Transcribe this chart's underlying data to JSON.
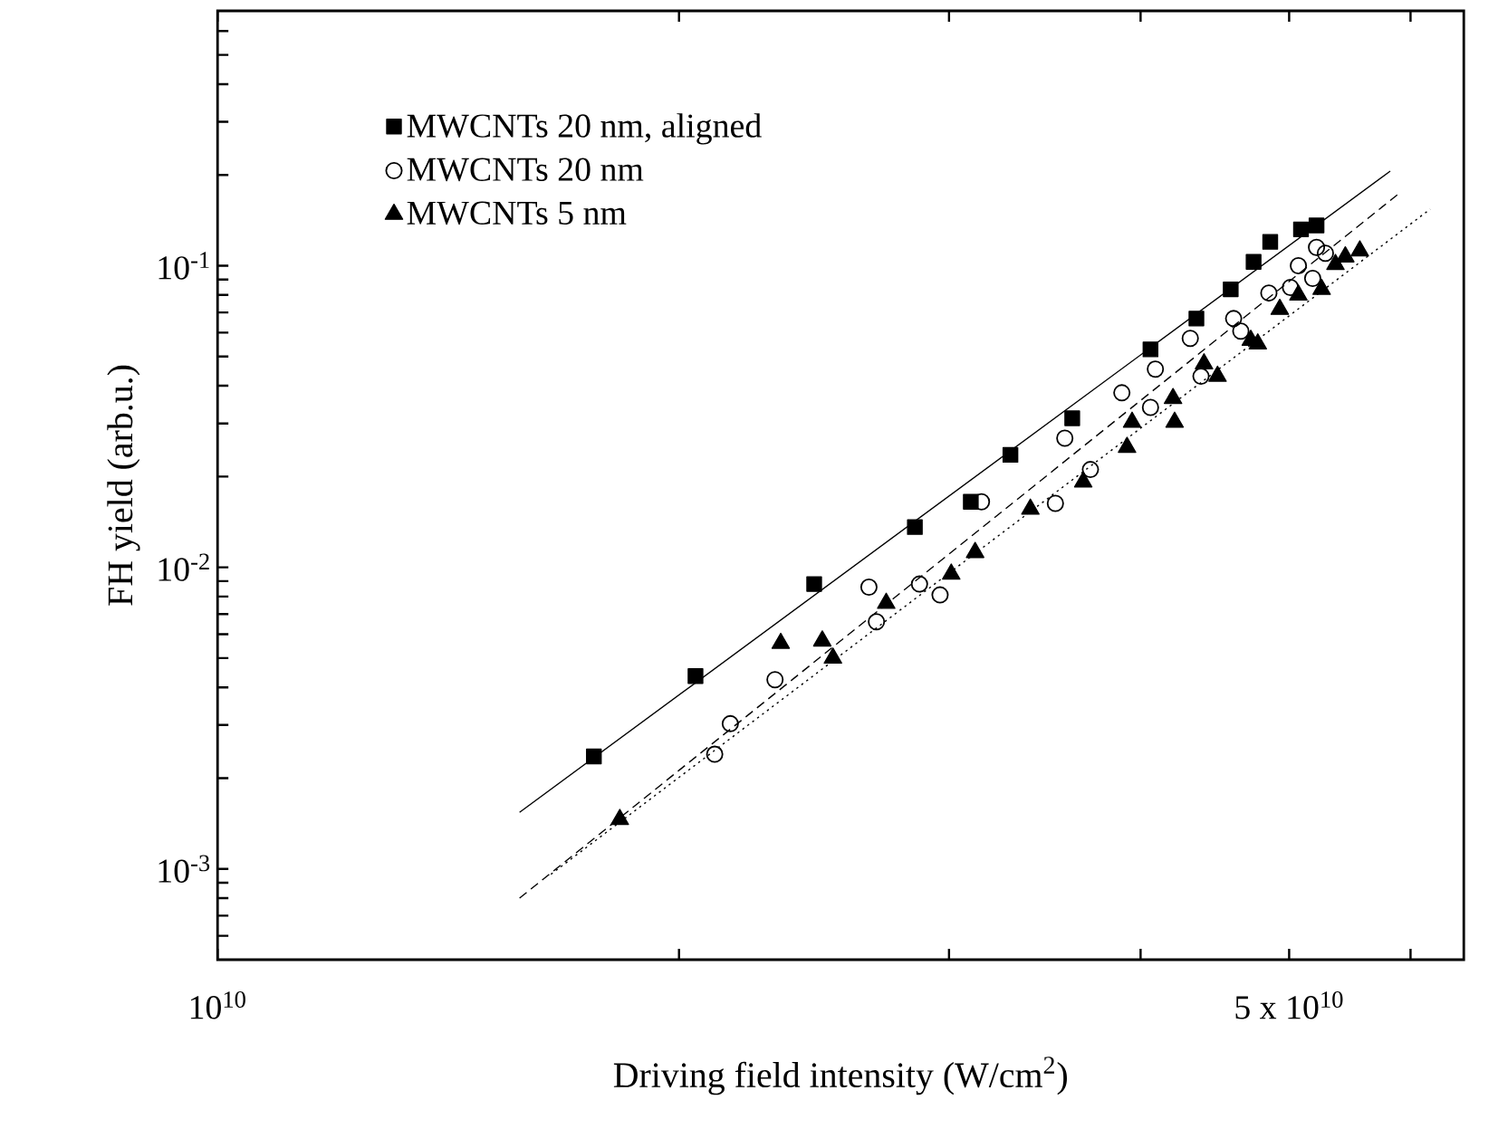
{
  "chart_data": {
    "type": "scatter",
    "xlabel": "Driving field intensity (W/cm$^{2}$)",
    "ylabel": "FH yield (arb.u.)",
    "log": "xy",
    "legend": "top left",
    "grid": false,
    "xlim": [
      10000000000.0,
      65000000000.0
    ],
    "ylim": [
      0.0005,
      0.7
    ],
    "xticks": [
      {
        "value": 10000000000.0,
        "label": "10$^{10}$"
      },
      {
        "value": 20000000000.0,
        "label": null
      },
      {
        "value": 30000000000.0,
        "label": null
      },
      {
        "value": 40000000000.0,
        "label": null
      },
      {
        "value": 50000000000.0,
        "label": "5 x 10$^{10}$"
      },
      {
        "value": 60000000000.0,
        "label": null
      }
    ],
    "yticks": [
      {
        "value": 0.0006,
        "label": null
      },
      {
        "value": 0.0007,
        "label": null
      },
      {
        "value": 0.0008,
        "label": null
      },
      {
        "value": 0.0009,
        "label": null
      },
      {
        "value": 0.001,
        "label": "10$^{-3}$"
      },
      {
        "value": 0.002,
        "label": null
      },
      {
        "value": 0.003,
        "label": null
      },
      {
        "value": 0.004,
        "label": null
      },
      {
        "value": 0.005,
        "label": null
      },
      {
        "value": 0.006,
        "label": null
      },
      {
        "value": 0.007,
        "label": null
      },
      {
        "value": 0.008,
        "label": null
      },
      {
        "value": 0.009,
        "label": null
      },
      {
        "value": 0.01,
        "label": "10$^{-2}$"
      },
      {
        "value": 0.02,
        "label": null
      },
      {
        "value": 0.03,
        "label": null
      },
      {
        "value": 0.04,
        "label": null
      },
      {
        "value": 0.05,
        "label": null
      },
      {
        "value": 0.06,
        "label": null
      },
      {
        "value": 0.07,
        "label": null
      },
      {
        "value": 0.08,
        "label": null
      },
      {
        "value": 0.09,
        "label": null
      },
      {
        "value": 0.1,
        "label": "10$^{-1}$"
      },
      {
        "value": 0.2,
        "label": null
      },
      {
        "value": 0.3,
        "label": null
      },
      {
        "value": 0.4,
        "label": null
      },
      {
        "value": 0.5,
        "label": null
      },
      {
        "value": 0.6,
        "label": null
      }
    ],
    "series": [
      {
        "name": "MWCNTs 20 nm, aligned",
        "marker": "square",
        "color": "#000000",
        "x": [
          17600000000.0,
          20500000000.0,
          24500000000.0,
          28500000000.0,
          31000000000.0,
          32900000000.0,
          36100000000.0,
          40600000000.0,
          43500000000.0,
          45800000000.0,
          47400000000.0,
          48600000000.0,
          50900000000.0,
          52100000000.0
        ],
        "values": [
          0.00236,
          0.00436,
          0.0088,
          0.0136,
          0.0165,
          0.0236,
          0.0312,
          0.0528,
          0.0668,
          0.0835,
          0.103,
          0.12,
          0.132,
          0.136
        ]
      },
      {
        "name": "MWCNTs 20 nm",
        "marker": "circle",
        "color": "#000000",
        "x": [
          21100000000.0,
          21600000000.0,
          23100000000.0,
          26600000000.0,
          26900000000.0,
          28700000000.0,
          29600000000.0,
          31500000000.0,
          35200000000.0,
          37100000000.0,
          35700000000.0,
          38900000000.0,
          40600000000.0,
          40900000000.0,
          43100000000.0,
          43800000000.0,
          46000000000.0,
          46500000000.0,
          48500000000.0,
          50100000000.0,
          50700000000.0,
          51800000000.0,
          52100000000.0,
          52800000000.0
        ],
        "values": [
          0.0024,
          0.00303,
          0.00424,
          0.0086,
          0.0066,
          0.0088,
          0.0081,
          0.0165,
          0.0163,
          0.0211,
          0.0268,
          0.0379,
          0.0339,
          0.0454,
          0.0574,
          0.043,
          0.0668,
          0.0607,
          0.0812,
          0.0847,
          0.1,
          0.0908,
          0.115,
          0.11
        ]
      },
      {
        "name": "MWCNTs  5 nm",
        "marker": "triangle",
        "color": "#000000",
        "x": [
          18300000000.0,
          23300000000.0,
          24800000000.0,
          25200000000.0,
          27300000000.0,
          30100000000.0,
          31200000000.0,
          33900000000.0,
          36700000000.0,
          39200000000.0,
          39500000000.0,
          42000000000.0,
          42100000000.0,
          44000000000.0,
          44900000000.0,
          47200000000.0,
          47700000000.0,
          49300000000.0,
          50700000000.0,
          52500000000.0,
          53600000000.0,
          54400000000.0,
          55600000000.0
        ],
        "values": [
          0.00146,
          0.0056,
          0.0057,
          0.005,
          0.0076,
          0.0095,
          0.0112,
          0.0156,
          0.0192,
          0.025,
          0.0303,
          0.0363,
          0.0303,
          0.0473,
          0.043,
          0.0566,
          0.0551,
          0.0717,
          0.08,
          0.0835,
          0.101,
          0.107,
          0.112
        ]
      },
      {
        "type": "line",
        "line_style": "solid",
        "marker": "none",
        "color": "#000000",
        "x": [
          15740000000.0,
          58200000000.0
        ],
        "values": [
          0.00154,
          0.206
        ]
      },
      {
        "type": "line",
        "line_style": "dashed",
        "marker": "none",
        "color": "#000000",
        "x": [
          15740000000.0,
          59000000000.0
        ],
        "values": [
          0.0008,
          0.174
        ]
      },
      {
        "type": "line",
        "line_style": "dotted",
        "marker": "none",
        "color": "#000000",
        "x": [
          16500000000.0,
          61800000000.0
        ],
        "values": [
          0.00096,
          0.154
        ]
      }
    ]
  }
}
